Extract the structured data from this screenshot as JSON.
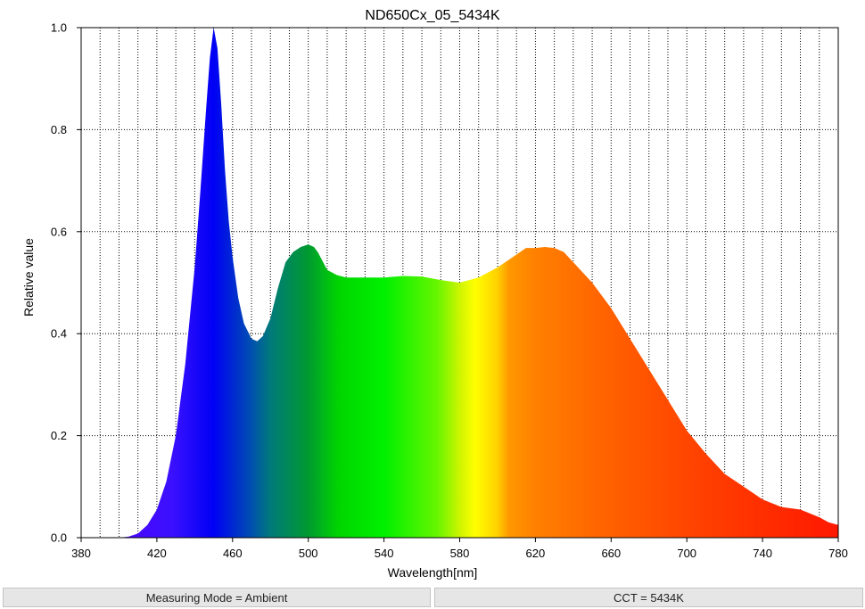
{
  "chart_data": {
    "type": "area",
    "title": "ND650Cx_05_5434K",
    "xlabel": "Wavelength[nm]",
    "ylabel": "Relative value",
    "xlim": [
      380,
      780
    ],
    "ylim": [
      0,
      1.0
    ],
    "x_ticks": [
      380,
      420,
      460,
      500,
      540,
      580,
      620,
      660,
      700,
      740,
      780
    ],
    "x_tick_labels": [
      "380",
      "420",
      "460",
      "500",
      "540",
      "580",
      "620",
      "660",
      "700",
      "740",
      "780"
    ],
    "y_ticks": [
      0,
      0.2,
      0.4,
      0.6,
      0.8,
      1.0
    ],
    "y_tick_labels": [
      "0.0",
      "0.2",
      "0.4",
      "0.6",
      "0.8",
      "1.0"
    ],
    "grid": true,
    "fill": "visible-spectrum gradient",
    "series": [
      {
        "x": [
          380,
          400,
          405,
          410,
          415,
          420,
          425,
          430,
          435,
          440,
          443,
          446,
          448,
          450,
          452,
          454,
          456,
          458,
          460,
          463,
          466,
          470,
          473,
          476,
          480,
          484,
          488,
          492,
          496,
          500,
          503,
          505,
          510,
          515,
          520,
          530,
          540,
          550,
          560,
          570,
          580,
          590,
          600,
          610,
          615,
          620,
          625,
          630,
          635,
          640,
          650,
          660,
          670,
          680,
          690,
          700,
          710,
          720,
          730,
          740,
          750,
          760,
          770,
          775,
          780
        ],
        "y": [
          0,
          0,
          0.002,
          0.008,
          0.025,
          0.055,
          0.11,
          0.2,
          0.34,
          0.53,
          0.68,
          0.84,
          0.94,
          1.0,
          0.96,
          0.85,
          0.72,
          0.62,
          0.55,
          0.47,
          0.42,
          0.39,
          0.385,
          0.395,
          0.43,
          0.49,
          0.54,
          0.56,
          0.57,
          0.575,
          0.57,
          0.56,
          0.525,
          0.515,
          0.51,
          0.51,
          0.51,
          0.513,
          0.512,
          0.505,
          0.5,
          0.51,
          0.53,
          0.555,
          0.568,
          0.568,
          0.57,
          0.568,
          0.56,
          0.54,
          0.5,
          0.45,
          0.39,
          0.33,
          0.27,
          0.21,
          0.165,
          0.125,
          0.1,
          0.075,
          0.06,
          0.055,
          0.04,
          0.03,
          0.025
        ]
      }
    ]
  },
  "status_bar": {
    "left": "Measuring Mode = Ambient",
    "right": "CCT = 5434K"
  }
}
